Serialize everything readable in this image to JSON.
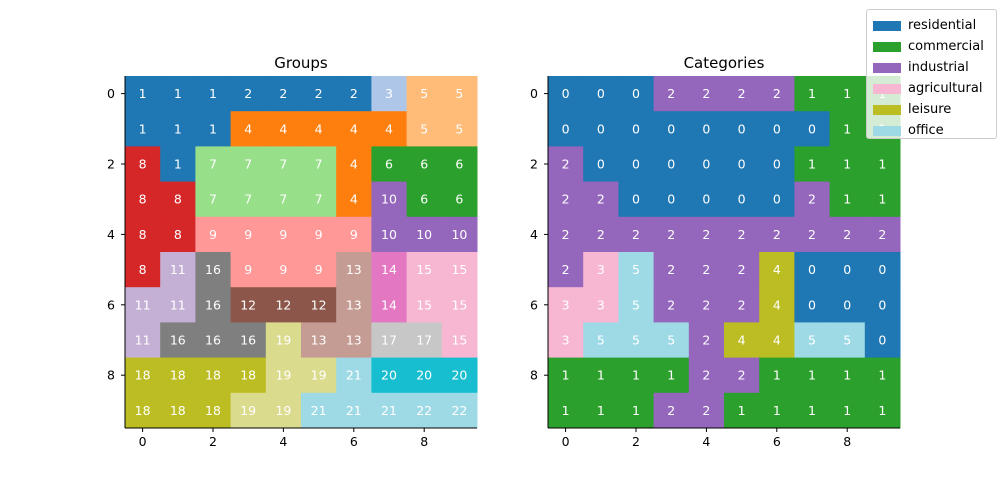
{
  "chart_data": [
    {
      "type": "heatmap",
      "title": "Groups",
      "xticks": [
        "0",
        "2",
        "4",
        "6",
        "8"
      ],
      "yticks": [
        "0",
        "2",
        "4",
        "6",
        "8"
      ],
      "values": [
        [
          1,
          1,
          1,
          2,
          2,
          2,
          2,
          3,
          5,
          5
        ],
        [
          1,
          1,
          1,
          4,
          4,
          4,
          4,
          4,
          5,
          5
        ],
        [
          8,
          1,
          7,
          7,
          7,
          7,
          4,
          6,
          6,
          6
        ],
        [
          8,
          8,
          7,
          7,
          7,
          7,
          4,
          10,
          6,
          6
        ],
        [
          8,
          8,
          9,
          9,
          9,
          9,
          9,
          10,
          10,
          10
        ],
        [
          8,
          11,
          16,
          9,
          9,
          9,
          13,
          14,
          15,
          15
        ],
        [
          11,
          11,
          16,
          12,
          12,
          12,
          13,
          14,
          15,
          15
        ],
        [
          11,
          16,
          16,
          16,
          19,
          13,
          13,
          17,
          17,
          15
        ],
        [
          18,
          18,
          18,
          18,
          19,
          19,
          21,
          20,
          20,
          20
        ],
        [
          18,
          18,
          18,
          19,
          19,
          21,
          21,
          21,
          22,
          22
        ]
      ]
    },
    {
      "type": "heatmap",
      "title": "Categories",
      "xticks": [
        "0",
        "2",
        "4",
        "6",
        "8"
      ],
      "yticks": [
        "0",
        "2",
        "4",
        "6",
        "8"
      ],
      "values": [
        [
          0,
          0,
          0,
          2,
          2,
          2,
          2,
          1,
          1,
          1
        ],
        [
          0,
          0,
          0,
          0,
          0,
          0,
          0,
          0,
          1,
          1
        ],
        [
          2,
          0,
          0,
          0,
          0,
          0,
          0,
          1,
          1,
          1
        ],
        [
          2,
          2,
          0,
          0,
          0,
          0,
          0,
          2,
          1,
          1
        ],
        [
          2,
          2,
          2,
          2,
          2,
          2,
          2,
          2,
          2,
          2
        ],
        [
          2,
          3,
          5,
          2,
          2,
          2,
          4,
          0,
          0,
          0
        ],
        [
          3,
          3,
          5,
          2,
          2,
          2,
          4,
          0,
          0,
          0
        ],
        [
          3,
          5,
          5,
          5,
          2,
          4,
          4,
          5,
          5,
          0
        ],
        [
          1,
          1,
          1,
          1,
          2,
          2,
          1,
          1,
          1,
          1
        ],
        [
          1,
          1,
          1,
          2,
          2,
          1,
          1,
          1,
          1,
          1
        ]
      ]
    }
  ],
  "group_colors": [
    "#1f77b4",
    "#1f77b4",
    "#aec7e8",
    "#ff7f0e",
    "#ffbb78",
    "#2ca02c",
    "#98df8a",
    "#d62728",
    "#ff9896",
    "#9467bd",
    "#c5b0d5",
    "#8c564b",
    "#c49c94",
    "#e377c2",
    "#f7b6d2",
    "#7f7f7f",
    "#c7c7c7",
    "#bcbd22",
    "#dbdb8d",
    "#17becf",
    "#9edae5",
    "#9edae5"
  ],
  "legend": [
    {
      "label": "residential",
      "color": "#1f77b4"
    },
    {
      "label": "commercial",
      "color": "#2ca02c"
    },
    {
      "label": "industrial",
      "color": "#9467bd"
    },
    {
      "label": "agricultural",
      "color": "#f7b6d2"
    },
    {
      "label": "leisure",
      "color": "#bcbd22"
    },
    {
      "label": "office",
      "color": "#9edae5"
    }
  ]
}
